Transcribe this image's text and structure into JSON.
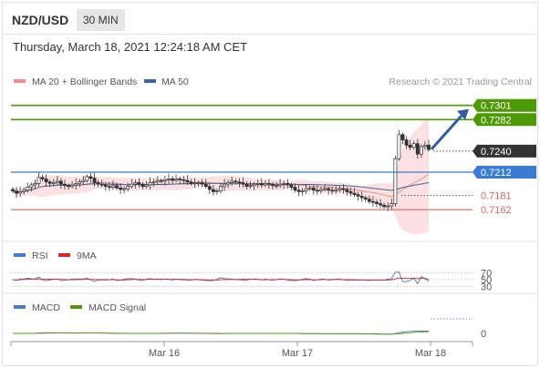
{
  "header": {
    "symbol": "NZD/USD",
    "interval": "30 MIN",
    "timestamp": "Thursday, March 18, 2021 12:24:18 AM CET"
  },
  "legend": {
    "ma20": "MA 20 + Bollinger Bands",
    "ma50": "MA 50",
    "copyright": "Research © 2021 Trading Central",
    "ma20_color": "#f28c8c",
    "ma50_color": "#3a66a8"
  },
  "colors": {
    "resistance": "#4e9a06",
    "support": "#3a7bd5",
    "pivot_low": "#e06262",
    "current": "#333333",
    "arrow": "#2f5f9f",
    "rsi": "#4a78d0",
    "rsi_ma": "#d92b2b",
    "macd": "#4a78d0",
    "macd_signal": "#4e9a06"
  },
  "levels": {
    "resistance_2": "0.7301",
    "resistance_1": "0.7282",
    "current": "0.7240",
    "support_1": "0.7212",
    "support_2": "0.7181",
    "support_3": "0.7162"
  },
  "rsi_legend": {
    "rsi": "RSI",
    "ma": "9MA",
    "ticks": [
      "70",
      "50",
      "30"
    ]
  },
  "macd_legend": {
    "macd": "MACD",
    "signal": "MACD Signal",
    "ticks": [
      "0"
    ]
  },
  "x_axis": {
    "labels": [
      "Mar 16",
      "Mar 17",
      "Mar 18"
    ]
  },
  "chart_data": {
    "type": "candlestick",
    "instrument": "NZD/USD",
    "timeframe": "30 MIN",
    "y_range": [
      0.7138,
      0.732
    ],
    "x_labels": [
      "Mar 16",
      "Mar 17",
      "Mar 18"
    ],
    "horizontal_levels": [
      0.7301,
      0.7282,
      0.7212,
      0.7181,
      0.7162
    ],
    "last_price": 0.724,
    "close_series": [
      0.7187,
      0.7184,
      0.7186,
      0.7188,
      0.7192,
      0.7195,
      0.7197,
      0.7205,
      0.7203,
      0.7199,
      0.7197,
      0.7198,
      0.72,
      0.7196,
      0.7194,
      0.7193,
      0.7195,
      0.7197,
      0.7199,
      0.7201,
      0.7206,
      0.7204,
      0.7198,
      0.7196,
      0.7195,
      0.7193,
      0.7192,
      0.7194,
      0.7191,
      0.7189,
      0.719,
      0.7193,
      0.7196,
      0.7198,
      0.7196,
      0.7193,
      0.7195,
      0.7198,
      0.7199,
      0.7201,
      0.72,
      0.7202,
      0.7203,
      0.7201,
      0.7203,
      0.7202,
      0.7201,
      0.7199,
      0.7197,
      0.7198,
      0.7198,
      0.7196,
      0.7193,
      0.7189,
      0.7186,
      0.7187,
      0.7193,
      0.7196,
      0.7198,
      0.72,
      0.7199,
      0.7198,
      0.7196,
      0.7193,
      0.7194,
      0.7196,
      0.7197,
      0.7195,
      0.7197,
      0.7196,
      0.7194,
      0.7194,
      0.7196,
      0.7197,
      0.7195,
      0.7192,
      0.7188,
      0.7186,
      0.7187,
      0.719,
      0.7191,
      0.7188,
      0.7187,
      0.7189,
      0.719,
      0.7188,
      0.7187,
      0.7188,
      0.719,
      0.7189,
      0.7186,
      0.7184,
      0.7182,
      0.718,
      0.7178,
      0.7176,
      0.7173,
      0.7172,
      0.717,
      0.7168,
      0.7166,
      0.7167,
      0.717,
      0.723,
      0.7262,
      0.7255,
      0.7248,
      0.7245,
      0.725,
      0.7236,
      0.7246,
      0.7248,
      0.7242
    ],
    "indicators": {
      "rsi_reference_levels": [
        70,
        50,
        30
      ],
      "macd_reference_level": 0
    }
  }
}
